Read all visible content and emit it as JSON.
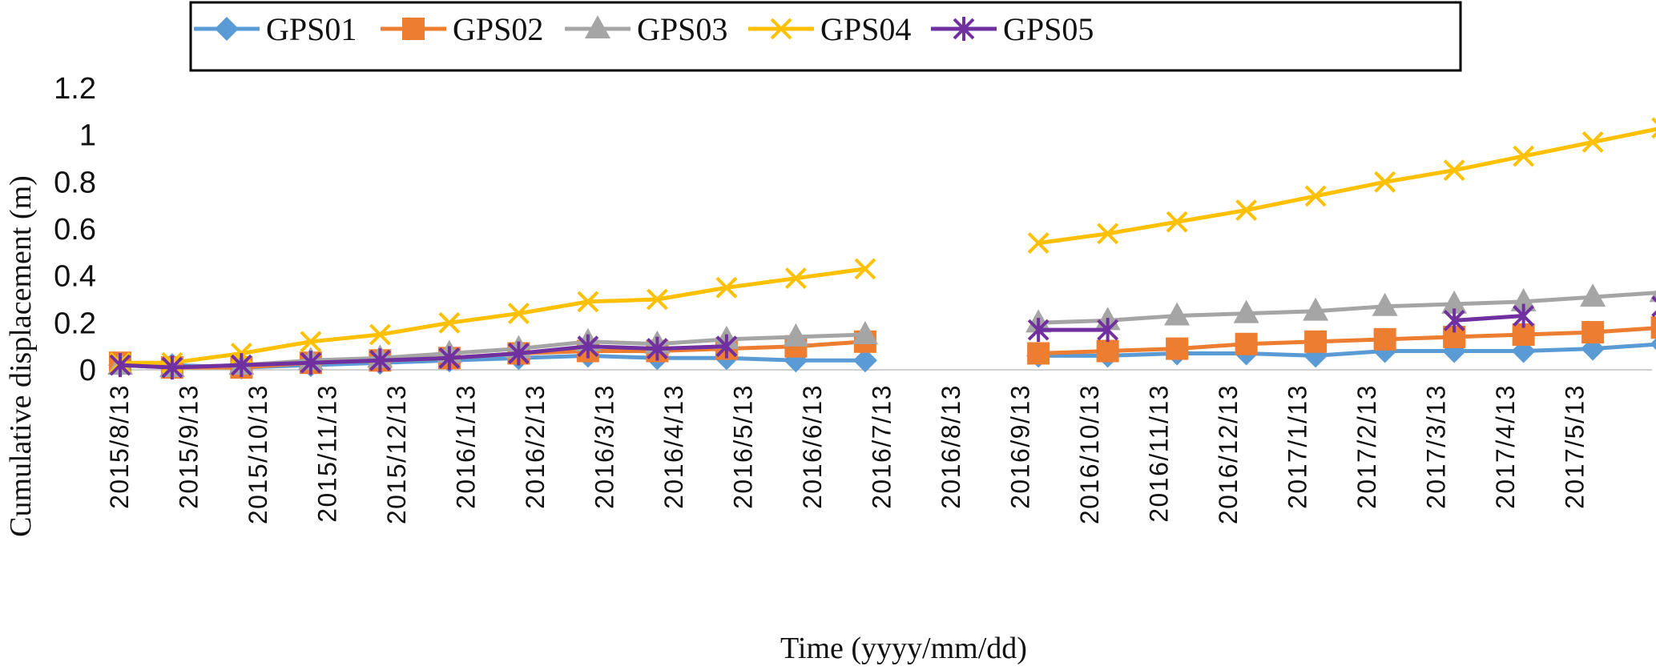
{
  "chart_data": {
    "type": "line",
    "title": "",
    "xlabel": "Time  (yyyy/mm/dd)",
    "ylabel": "Cumulative displacement  (m)",
    "ylim": [
      0,
      1.2
    ],
    "yticks": [
      "0",
      "0.2",
      "0.4",
      "0.6",
      "0.8",
      "1",
      "1.2"
    ],
    "grid": false,
    "legend_position": "top",
    "categories": [
      "2015/8/13",
      "2015/9/13",
      "2015/10/13",
      "2015/11/13",
      "2015/12/13",
      "2016/1/13",
      "2016/2/13",
      "2016/3/13",
      "2016/4/13",
      "2016/5/13",
      "2016/6/13",
      "2016/7/13",
      "2016/8/13",
      "2016/9/13",
      "2016/10/13",
      "2016/11/13",
      "2016/12/13",
      "2017/1/13",
      "2017/2/13",
      "2017/3/13",
      "2017/4/13",
      "2017/5/13"
    ],
    "series": [
      {
        "name": "GPS01",
        "color": "#5B9BD5",
        "marker": "diamond",
        "points": [
          [
            0,
            0.02
          ],
          [
            0.75,
            0.02
          ],
          [
            1.75,
            0.01
          ],
          [
            2.75,
            0.02
          ],
          [
            3.75,
            0.03
          ],
          [
            4.75,
            0.04
          ],
          [
            5.75,
            0.05
          ],
          [
            6.75,
            0.06
          ],
          [
            7.75,
            0.05
          ],
          [
            8.75,
            0.05
          ],
          [
            9.75,
            0.04
          ],
          [
            10.75,
            0.04
          ],
          null,
          [
            13.25,
            0.06
          ],
          [
            14.25,
            0.06
          ],
          [
            15.25,
            0.07
          ],
          [
            16.25,
            0.07
          ],
          [
            17.25,
            0.06
          ],
          [
            18.25,
            0.08
          ],
          [
            19.25,
            0.08
          ],
          [
            20.25,
            0.08
          ],
          [
            21.25,
            0.09
          ],
          [
            22.25,
            0.11
          ]
        ]
      },
      {
        "name": "GPS02",
        "color": "#ED7D31",
        "marker": "square",
        "points": [
          [
            0,
            0.03
          ],
          [
            0.75,
            0.01
          ],
          [
            1.75,
            0.01
          ],
          [
            2.75,
            0.03
          ],
          [
            3.75,
            0.04
          ],
          [
            4.75,
            0.05
          ],
          [
            5.75,
            0.07
          ],
          [
            6.75,
            0.08
          ],
          [
            7.75,
            0.08
          ],
          [
            8.75,
            0.09
          ],
          [
            9.75,
            0.1
          ],
          [
            10.75,
            0.12
          ],
          null,
          [
            13.25,
            0.07
          ],
          [
            14.25,
            0.08
          ],
          [
            15.25,
            0.09
          ],
          [
            16.25,
            0.11
          ],
          [
            17.25,
            0.12
          ],
          [
            18.25,
            0.13
          ],
          [
            19.25,
            0.14
          ],
          [
            20.25,
            0.15
          ],
          [
            21.25,
            0.16
          ],
          [
            22.25,
            0.18
          ]
        ]
      },
      {
        "name": "GPS03",
        "color": "#A5A5A5",
        "marker": "triangle",
        "points": [
          [
            0,
            0.02
          ],
          [
            0.75,
            0.01
          ],
          [
            1.75,
            0.02
          ],
          [
            2.75,
            0.04
          ],
          [
            3.75,
            0.05
          ],
          [
            4.75,
            0.07
          ],
          [
            5.75,
            0.09
          ],
          [
            6.75,
            0.12
          ],
          [
            7.75,
            0.11
          ],
          [
            8.75,
            0.13
          ],
          [
            9.75,
            0.14
          ],
          [
            10.75,
            0.15
          ],
          null,
          [
            13.25,
            0.2
          ],
          [
            14.25,
            0.21
          ],
          [
            15.25,
            0.23
          ],
          [
            16.25,
            0.24
          ],
          [
            17.25,
            0.25
          ],
          [
            18.25,
            0.27
          ],
          [
            19.25,
            0.28
          ],
          [
            20.25,
            0.29
          ],
          [
            21.25,
            0.31
          ],
          [
            22.25,
            0.33
          ]
        ]
      },
      {
        "name": "GPS04",
        "color": "#FFC000",
        "marker": "x",
        "points": [
          [
            0,
            0.03
          ],
          [
            0.75,
            0.03
          ],
          [
            1.75,
            0.07
          ],
          [
            2.75,
            0.12
          ],
          [
            3.75,
            0.15
          ],
          [
            4.75,
            0.2
          ],
          [
            5.75,
            0.24
          ],
          [
            6.75,
            0.29
          ],
          [
            7.75,
            0.3
          ],
          [
            8.75,
            0.35
          ],
          [
            9.75,
            0.39
          ],
          [
            10.75,
            0.43
          ],
          null,
          [
            13.25,
            0.54
          ],
          [
            14.25,
            0.58
          ],
          [
            15.25,
            0.63
          ],
          [
            16.25,
            0.68
          ],
          [
            17.25,
            0.74
          ],
          [
            18.25,
            0.8
          ],
          [
            19.25,
            0.85
          ],
          [
            20.25,
            0.91
          ],
          [
            21.25,
            0.97
          ],
          [
            22.25,
            1.03
          ]
        ]
      },
      {
        "name": "GPS05",
        "color": "#7030A0",
        "marker": "asterisk",
        "points": [
          [
            0,
            0.02
          ],
          [
            0.75,
            0.01
          ],
          [
            1.75,
            0.02
          ],
          [
            2.75,
            0.03
          ],
          [
            3.75,
            0.04
          ],
          [
            4.75,
            0.05
          ],
          [
            5.75,
            0.07
          ],
          [
            6.75,
            0.1
          ],
          [
            7.75,
            0.09
          ],
          [
            8.75,
            0.1
          ],
          null,
          [
            13.25,
            0.17
          ],
          [
            14.25,
            0.17
          ],
          null,
          [
            19.25,
            0.21
          ],
          [
            20.25,
            0.23
          ],
          null,
          [
            22.25,
            0.27
          ]
        ]
      }
    ]
  }
}
